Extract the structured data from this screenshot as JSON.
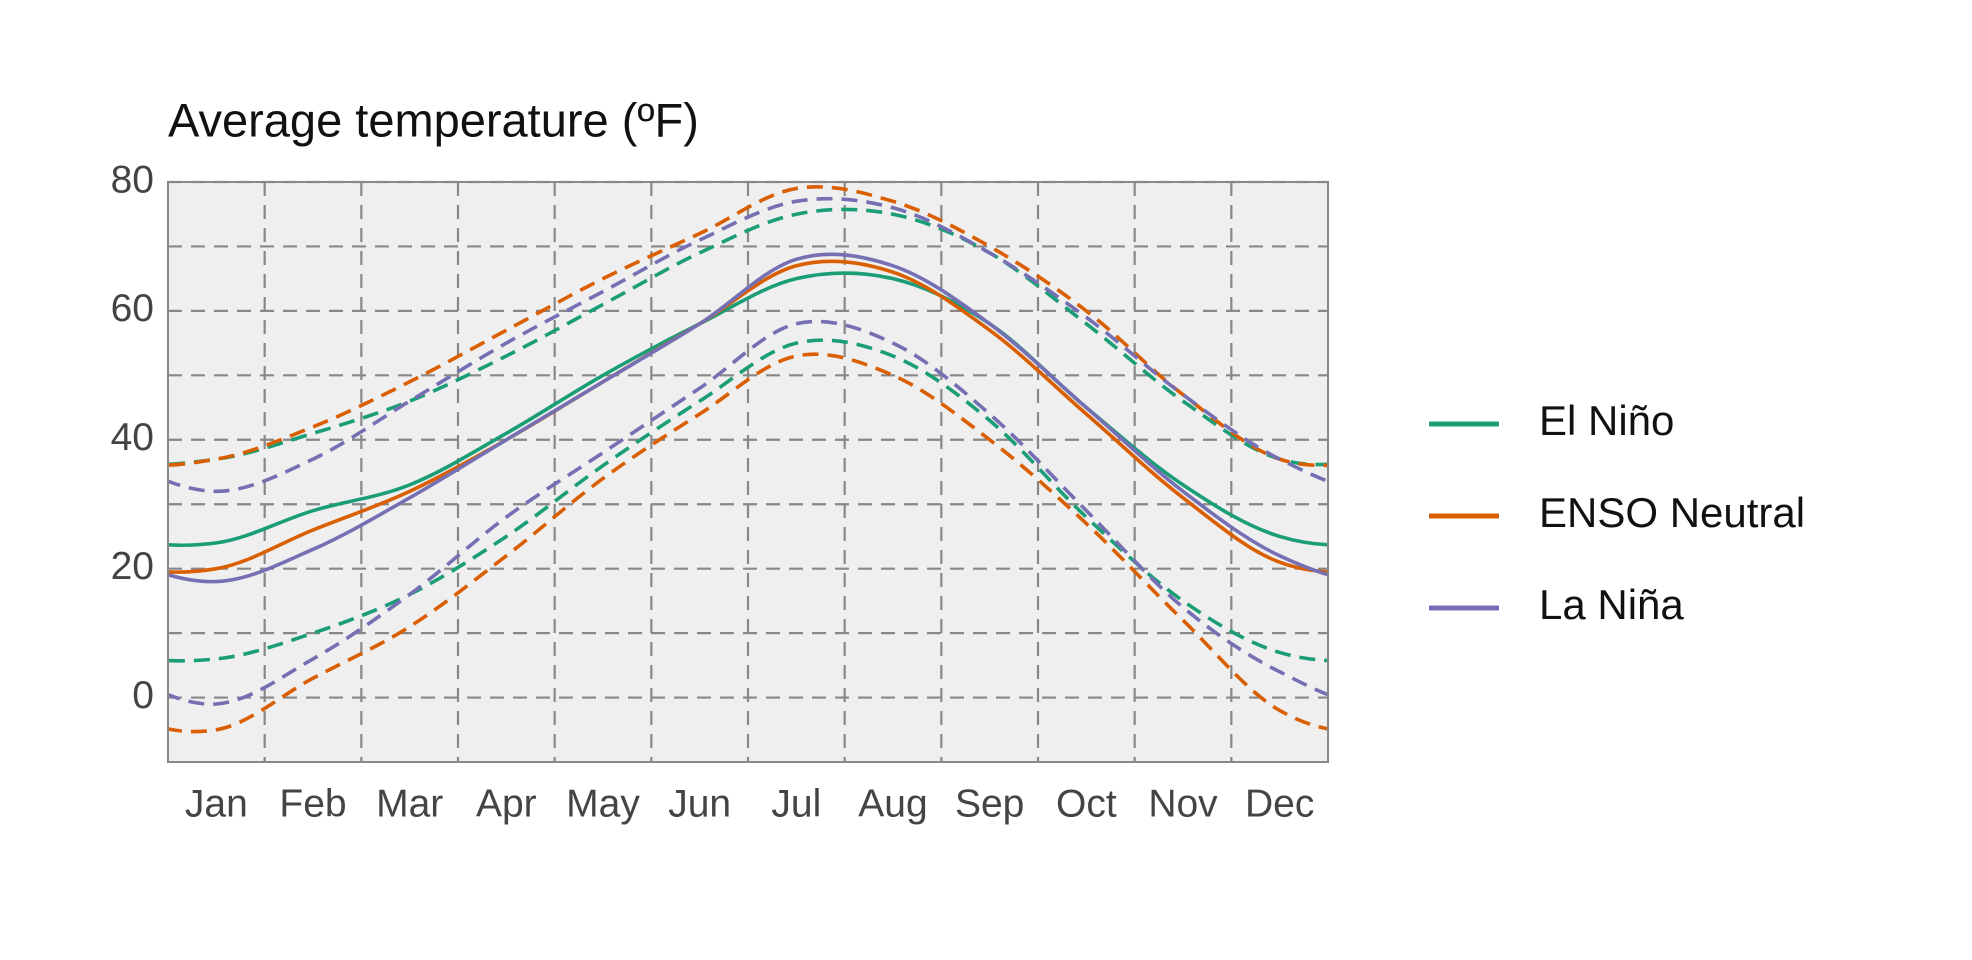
{
  "chart_data": {
    "type": "line",
    "title": "Average temperature (ºF)",
    "categories": [
      "Jan",
      "Feb",
      "Mar",
      "Apr",
      "May",
      "Jun",
      "Jul",
      "Aug",
      "Sep",
      "Oct",
      "Nov",
      "Dec"
    ],
    "ylim": [
      -10,
      80
    ],
    "yticks": [
      0,
      20,
      40,
      60,
      80
    ],
    "yminorticks": [
      10,
      30,
      50,
      70
    ],
    "grid": true,
    "legend": "right",
    "series": [
      {
        "name": "El Niño",
        "color": "#1b9e77",
        "values": [
          24,
          29,
          33,
          41,
          50,
          58,
          65,
          65,
          58,
          45,
          33,
          25
        ],
        "upper": [
          37,
          41,
          46,
          53,
          61,
          69,
          75,
          75,
          69,
          58,
          46,
          37
        ],
        "lower": [
          6,
          10,
          16,
          25,
          36,
          46,
          55,
          53,
          43,
          28,
          15,
          7
        ]
      },
      {
        "name": "ENSO Neutral",
        "color": "#d95f02",
        "values": [
          20,
          26,
          32,
          40,
          49,
          58,
          67,
          66,
          57,
          44,
          31,
          21
        ],
        "upper": [
          37,
          42,
          49,
          57,
          65,
          72,
          79,
          77,
          70,
          60,
          47,
          37
        ],
        "lower": [
          -5,
          3,
          11,
          22,
          34,
          44,
          53,
          50,
          40,
          27,
          12,
          -2
        ]
      },
      {
        "name": "La Niña",
        "color": "#7570b3",
        "values": [
          18,
          23,
          31,
          40,
          49,
          58,
          68,
          67,
          58,
          45,
          32,
          22
        ],
        "upper": [
          32,
          37,
          46,
          55,
          63,
          71,
          77,
          76,
          69,
          59,
          47,
          37
        ],
        "lower": [
          -1,
          6,
          16,
          28,
          38,
          48,
          58,
          55,
          44,
          29,
          14,
          4
        ]
      }
    ]
  }
}
